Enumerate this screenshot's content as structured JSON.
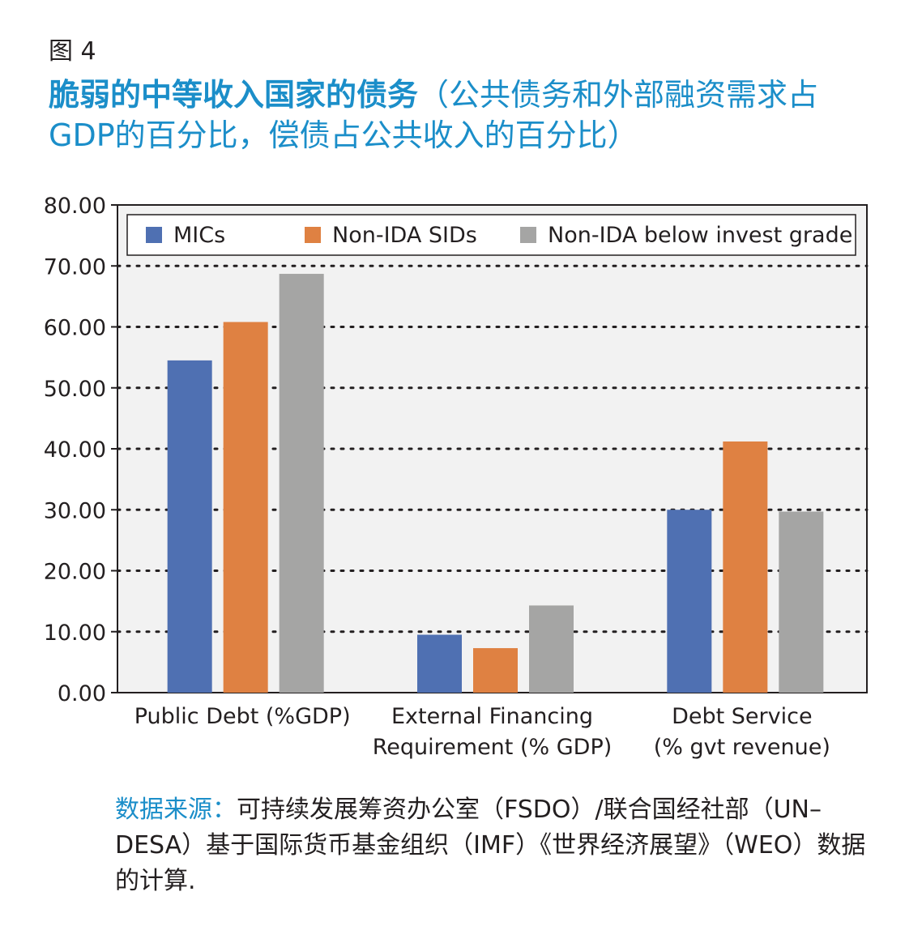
{
  "figure_label": "图 4",
  "title_bold": "脆弱的中等收入国家的债务",
  "title_rest": "（公共债务和外部融资需求占GDP的百分比，偿债占公共收入的百分比）",
  "source_label": "数据来源：",
  "source_text": "可持续发展筹资办公室（FSDO）/联合国经社部（UN–DESA）基于国际货币基金组织（IMF）《世界经济展望》（WEO）数据的计算.",
  "chart_data": {
    "type": "bar",
    "categories": [
      [
        "Public Debt (%GDP)"
      ],
      [
        "External Financing",
        "Requirement (% GDP)"
      ],
      [
        "Debt Service",
        "(% gvt revenue)"
      ]
    ],
    "series": [
      {
        "name": "MICs",
        "color": "#4f70b2",
        "values": [
          54.5,
          9.5,
          30.0
        ]
      },
      {
        "name": "Non-IDA SIDs",
        "color": "#df8142",
        "values": [
          60.8,
          7.3,
          41.2
        ]
      },
      {
        "name": "Non-IDA below invest grade",
        "color": "#a5a5a4",
        "values": [
          68.7,
          14.3,
          29.7
        ]
      }
    ],
    "ylim": [
      0,
      80
    ],
    "yticks": [
      "0.00",
      "10.00",
      "20.00",
      "30.00",
      "40.00",
      "50.00",
      "60.00",
      "70.00",
      "80.00"
    ],
    "grid": "dotted horizontal",
    "legend_position": "top"
  }
}
